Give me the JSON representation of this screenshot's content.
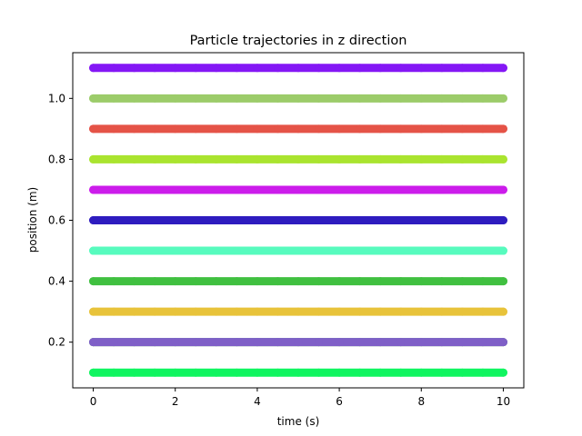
{
  "chart_data": {
    "type": "scatter",
    "title": "Particle trajectories in z direction",
    "xlabel": "time (s)",
    "ylabel": "position (m)",
    "xlim": [
      -0.5,
      10.5
    ],
    "ylim": [
      0.05,
      1.15
    ],
    "xticks": [
      0,
      2,
      4,
      6,
      8,
      10
    ],
    "yticks": [
      0.2,
      0.4,
      0.6,
      0.8,
      1.0
    ],
    "ytick_labels": [
      "0.2",
      "0.4",
      "0.6",
      "0.8",
      "1.0"
    ],
    "grid": false,
    "x": [
      0,
      0.5,
      1,
      1.5,
      2,
      2.5,
      3,
      3.5,
      4,
      4.5,
      5,
      5.5,
      6,
      6.5,
      7,
      7.5,
      8,
      8.5,
      9,
      9.5,
      10
    ],
    "series": [
      {
        "color": "#10f560",
        "y": 0.1
      },
      {
        "color": "#e5c737",
        "y": 0.2
      },
      {
        "color": "#3a9ec8",
        "y": 0.2
      },
      {
        "color": "#7f5fc7",
        "y": 0.2
      },
      {
        "color": "#e8c33a",
        "y": 0.3
      },
      {
        "color": "#40c040",
        "y": 0.4
      },
      {
        "color": "#57fbbe",
        "y": 0.5
      },
      {
        "color": "#2e1cbf",
        "y": 0.6
      },
      {
        "color": "#cc1ceb",
        "y": 0.7
      },
      {
        "color": "#aae42f",
        "y": 0.8
      },
      {
        "color": "#e55347",
        "y": 0.9
      },
      {
        "color": "#9ccc6a",
        "y": 1.0
      },
      {
        "color": "#8417f5",
        "y": 1.1
      }
    ]
  }
}
